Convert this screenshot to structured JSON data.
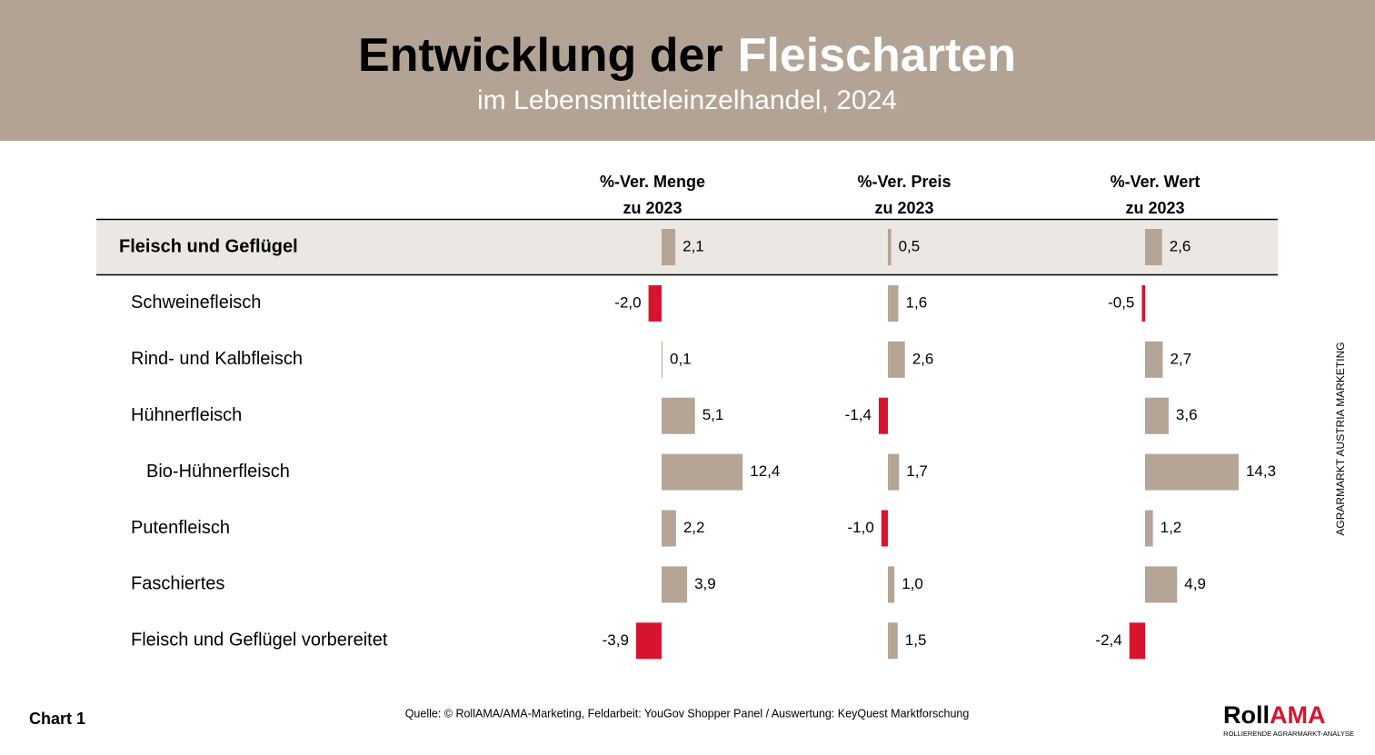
{
  "chart_data": {
    "type": "bar",
    "title": [
      "Entwicklung der",
      "Fleischarten"
    ],
    "subtitle": "im Lebensmitteleinzelhandel, 2024",
    "categories": [
      "Fleisch und Geflügel",
      "Schweinefleisch",
      "Rind- und Kalbfleisch",
      "Hühnerfleisch",
      "Bio-Hühnerfleisch",
      "Putenfleisch",
      "Faschiertes",
      "Fleisch und Geflügel vorbereitet"
    ],
    "color": "#b5a596",
    "negative_color": "#d7142e",
    "series": [
      {
        "name": [
          "%-Ver. Menge",
          "zu 2023"
        ],
        "values": [
          2.1,
          -2.0,
          0.1,
          5.1,
          12.4,
          2.2,
          3.9,
          -3.9
        ],
        "value_labels": [
          "2,1",
          "-2,0",
          "0,1",
          "5,1",
          "12,4",
          "2,2",
          "3,9",
          "-3,9"
        ]
      },
      {
        "name": [
          "%-Ver. Preis",
          "zu 2023"
        ],
        "values": [
          0.5,
          1.6,
          2.6,
          -1.4,
          1.7,
          -1.0,
          1.0,
          1.5
        ],
        "value_labels": [
          "0,5",
          "1,6",
          "2,6",
          "-1,4",
          "1,7",
          "-1,0",
          "1,0",
          "1,5"
        ]
      },
      {
        "name": [
          "%-Ver. Wert",
          "zu 2023"
        ],
        "values": [
          2.6,
          -0.5,
          2.7,
          3.6,
          14.3,
          1.2,
          4.9,
          -2.4
        ],
        "value_labels": [
          "2,6",
          "-0,5",
          "2,7",
          "3,6",
          "14,3",
          "1,2",
          "4,9",
          "-2,4"
        ]
      }
    ],
    "chart_label": "Chart 1",
    "source": "Quelle: © RollAMA/AMA-Marketing, Feldarbeit: YouGov Shopper Panel / Auswertung: KeyQuest Marktforschung",
    "side_label": "AGRARMARKT AUSTRIA MARKETING",
    "logo": [
      "Roll",
      "AMA"
    ],
    "logo_tagline": "ROLLIERENDE AGRARMARKT-ANALYSE"
  }
}
